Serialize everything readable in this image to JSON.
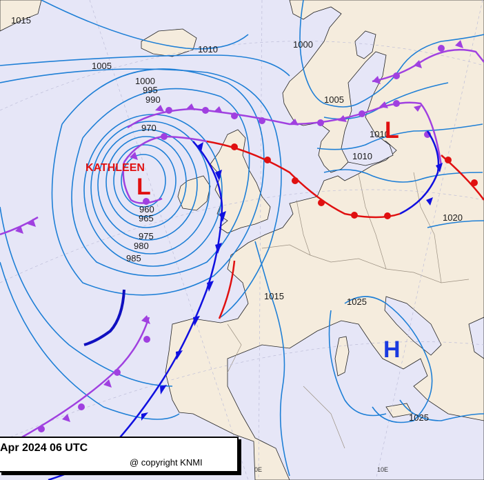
{
  "map": {
    "caption": "Apr 2024 06 UTC",
    "copyright": "@ copyright KNMI",
    "colors": {
      "sea": "#e6e6f7",
      "land": "#f5ecdd",
      "isobar": "#1e7fd6",
      "cold_front": "#1010e0",
      "warm_front": "#e01010",
      "occluded_front": "#a040e0",
      "trough": "#1010c0",
      "pressure_center": "#e01010",
      "high_center": "#1a3ae0"
    },
    "pressure_centers": [
      {
        "type": "L",
        "name": "KATHLEEN"
      },
      {
        "type": "L",
        "name": ""
      },
      {
        "type": "H",
        "name": ""
      }
    ],
    "isobar_labels": [
      "1015",
      "1010",
      "1005",
      "1000",
      "995",
      "990",
      "970",
      "960",
      "965",
      "975",
      "980",
      "985",
      "1000",
      "1005",
      "1010",
      "1010",
      "1015",
      "1020",
      "1025",
      "1025"
    ],
    "grid_labels": [
      "0E",
      "10E"
    ]
  }
}
